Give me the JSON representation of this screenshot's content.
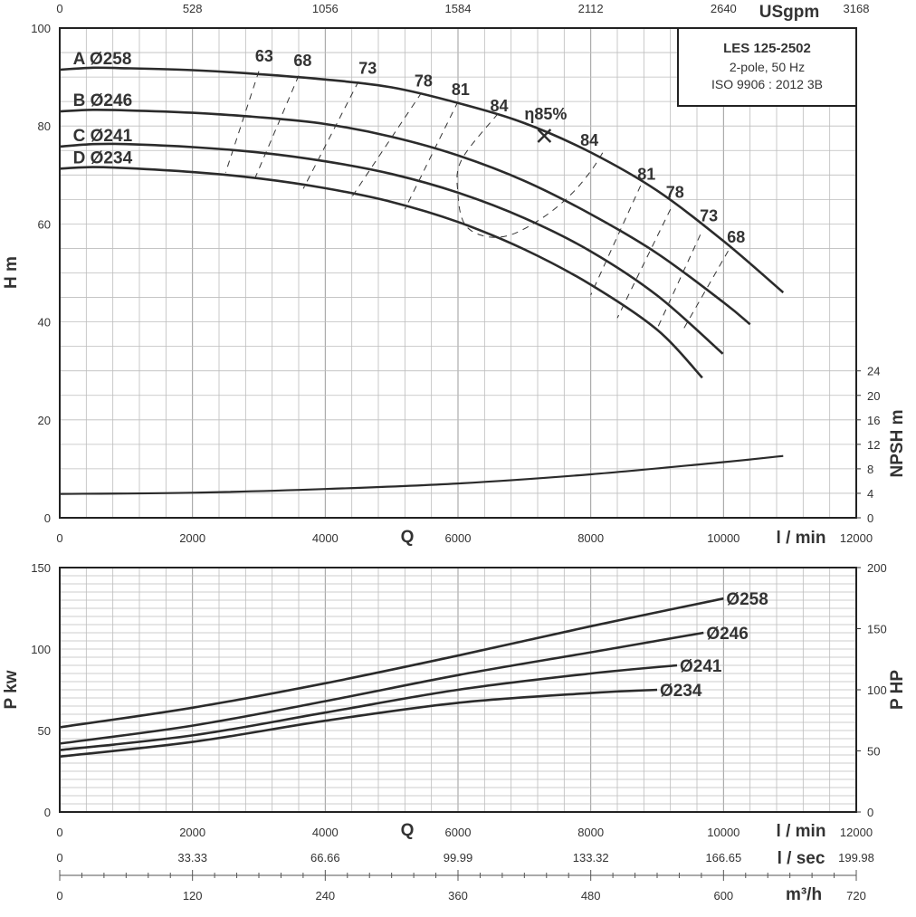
{
  "info": {
    "model": "LES 125-2502",
    "line1": "2-pole, 50 Hz",
    "line2": "ISO 9906 : 2012 3B"
  },
  "chart_data": [
    {
      "type": "line",
      "name": "head",
      "xlabel": "Q",
      "x_unit": "l / min",
      "ylabel": "H m",
      "y2label": "NPSH m",
      "x2_unit": "USgpm",
      "xlim": [
        0,
        12000
      ],
      "ylim": [
        0,
        100
      ],
      "y2lim": [
        0,
        24
      ],
      "grid": true,
      "x_ticks": [
        0,
        2000,
        4000,
        6000,
        8000,
        10000,
        12000
      ],
      "x2_ticks": [
        0,
        528,
        1056,
        1584,
        2112,
        2640,
        3168
      ],
      "y_ticks": [
        0,
        20,
        40,
        60,
        80,
        100
      ],
      "y2_ticks": [
        0,
        4,
        8,
        12,
        16,
        20,
        24
      ],
      "series": [
        {
          "name": "A Ø258",
          "x": [
            0,
            500,
            1000,
            2000,
            3000,
            4000,
            5000,
            6000,
            7000,
            8000,
            9000,
            10000,
            10900
          ],
          "y": [
            91.5,
            91.9,
            91.8,
            91.4,
            90.6,
            89.5,
            87.9,
            84.7,
            80.6,
            74.6,
            66.8,
            56.5,
            46
          ]
        },
        {
          "name": "B Ø246",
          "x": [
            0,
            500,
            1000,
            2000,
            3000,
            4000,
            5000,
            6000,
            7000,
            8000,
            9000,
            10000,
            10400
          ],
          "y": [
            83,
            83.3,
            83.2,
            82.7,
            81.8,
            80.4,
            77.8,
            74,
            68.8,
            62,
            54,
            44,
            39.5
          ]
        },
        {
          "name": "C Ø241",
          "x": [
            0,
            500,
            1000,
            2000,
            3000,
            4000,
            5000,
            6000,
            7000,
            8000,
            9000,
            9990
          ],
          "y": [
            75.8,
            76.3,
            76.3,
            75.7,
            74.6,
            72.8,
            70.2,
            66.4,
            61.2,
            54.4,
            45.4,
            33.5
          ]
        },
        {
          "name": "D Ø234",
          "x": [
            0,
            500,
            1000,
            2000,
            3000,
            4000,
            5000,
            6000,
            7000,
            8000,
            9000,
            9680
          ],
          "y": [
            71.3,
            71.6,
            71.4,
            70.6,
            69.3,
            67.3,
            64.5,
            60.4,
            54.8,
            47.6,
            38.4,
            28.6
          ]
        }
      ],
      "npsh": {
        "name": "NPSH",
        "x": [
          0,
          2000,
          4000,
          6000,
          8000,
          10000,
          10900
        ],
        "y": [
          3.9,
          4.1,
          4.7,
          5.6,
          7.1,
          9.1,
          10.1
        ]
      },
      "efficiency": {
        "best_label": "η85%",
        "best_point": [
          7300,
          78
        ],
        "labels": [
          {
            "text": "63",
            "x": 3080,
            "y": 93.2
          },
          {
            "text": "68",
            "x": 3660,
            "y": 92.2
          },
          {
            "text": "73",
            "x": 4640,
            "y": 90.7
          },
          {
            "text": "78",
            "x": 5480,
            "y": 88.1
          },
          {
            "text": "81",
            "x": 6040,
            "y": 86.3
          },
          {
            "text": "84",
            "x": 6620,
            "y": 83
          },
          {
            "text": "84",
            "x": 7980,
            "y": 76
          },
          {
            "text": "81",
            "x": 8840,
            "y": 69
          },
          {
            "text": "78",
            "x": 9270,
            "y": 65.3
          },
          {
            "text": "73",
            "x": 9780,
            "y": 60.5
          },
          {
            "text": "68",
            "x": 10190,
            "y": 56.2
          }
        ],
        "iso_lines": [
          {
            "x": [
              3000,
              2500
            ],
            "y": [
              91.2,
              70.5
            ]
          },
          {
            "x": [
              3600,
              2950
            ],
            "y": [
              90.3,
              69.6
            ]
          },
          {
            "x": [
              4500,
              3670
            ],
            "y": [
              89.1,
              67.2
            ]
          },
          {
            "x": [
              5450,
              4400
            ],
            "y": [
              86.8,
              65.5
            ]
          },
          {
            "x": [
              6000,
              5200
            ],
            "y": [
              85,
              63
            ]
          },
          {
            "x": [
              6600,
              6050,
              6000,
              6100,
              6400,
              6800,
              7300,
              7700,
              8000,
              8200
            ],
            "y": [
              82.5,
              73,
              66,
              60,
              57.5,
              57.8,
              61.5,
              66,
              70.8,
              75
            ]
          },
          {
            "x": [
              8750,
              8000
            ],
            "y": [
              67.8,
              45.5
            ]
          },
          {
            "x": [
              9200,
              8400
            ],
            "y": [
              63,
              40.8
            ]
          },
          {
            "x": [
              9650,
              9000
            ],
            "y": [
              57.8,
              38.6
            ]
          },
          {
            "x": [
              10070,
              9400
            ],
            "y": [
              54.5,
              38.6
            ]
          }
        ]
      }
    },
    {
      "type": "line",
      "name": "power",
      "xlabel": "Q",
      "x_unit": "l / min",
      "ylabel": "P kw",
      "y2label": "P HP",
      "x2_unit": "l / sec",
      "x3_unit": "m³/h",
      "xlim": [
        0,
        12000
      ],
      "ylim": [
        0,
        150
      ],
      "y2lim": [
        0,
        200
      ],
      "grid": true,
      "x_ticks": [
        0,
        2000,
        4000,
        6000,
        8000,
        10000,
        12000
      ],
      "y_ticks": [
        0,
        50,
        100,
        150
      ],
      "y2_ticks": [
        0,
        50,
        100,
        150,
        200
      ],
      "lsec_ticks": [
        "0",
        "33.33",
        "66.66",
        "99.99",
        "133.32",
        "166.65",
        "199.98"
      ],
      "m3h_ticks": [
        "0",
        "120",
        "240",
        "360",
        "480",
        "600",
        "720"
      ],
      "series": [
        {
          "name": "Ø258",
          "x": [
            0,
            2000,
            4000,
            6000,
            8000,
            10000
          ],
          "y": [
            52,
            64,
            79,
            96,
            114,
            131
          ]
        },
        {
          "name": "Ø246",
          "x": [
            0,
            2000,
            4000,
            6000,
            8000,
            9700
          ],
          "y": [
            42,
            53,
            68,
            84,
            98,
            110
          ]
        },
        {
          "name": "Ø241",
          "x": [
            0,
            2000,
            4000,
            6000,
            8000,
            9300
          ],
          "y": [
            38,
            47,
            61,
            75,
            85,
            90
          ]
        },
        {
          "name": "Ø234",
          "x": [
            0,
            2000,
            4000,
            6000,
            8000,
            9000
          ],
          "y": [
            34,
            43,
            56,
            67,
            73,
            75
          ]
        }
      ]
    }
  ]
}
